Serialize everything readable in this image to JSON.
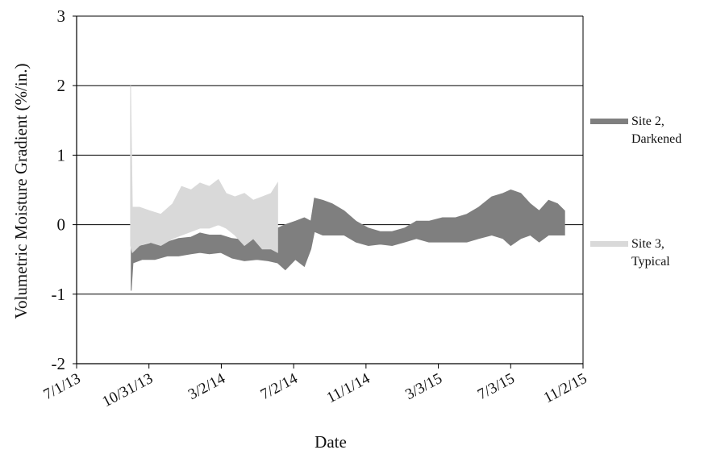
{
  "chart_data": {
    "type": "area",
    "xlabel": "Date",
    "ylabel": "Volumetric Moisture Gradient (%/in.)",
    "ylim": [
      -2,
      3
    ],
    "yticks": [
      "-2",
      "-1",
      "0",
      "1",
      "2",
      "3"
    ],
    "xlim": [
      "2013-07-01",
      "2015-11-02"
    ],
    "xticks": [
      "7/1/13",
      "10/31/13",
      "3/2/14",
      "7/2/14",
      "11/1/14",
      "3/3/15",
      "7/3/15",
      "11/2/15"
    ],
    "grid": "horizontal",
    "legend_position": "right",
    "series": [
      {
        "name": "Site 2, Darkened",
        "color": "#7f7f7f",
        "points": [
          {
            "date": "2013-10-01",
            "low": -0.95,
            "high": 0.0
          },
          {
            "date": "2013-10-04",
            "low": -0.55,
            "high": -0.25
          },
          {
            "date": "2013-10-20",
            "low": -0.5,
            "high": -0.3
          },
          {
            "date": "2013-11-10",
            "low": -0.5,
            "high": -0.25
          },
          {
            "date": "2013-12-01",
            "low": -0.45,
            "high": -0.25
          },
          {
            "date": "2013-12-20",
            "low": -0.45,
            "high": -0.2
          },
          {
            "date": "2014-01-10",
            "low": -0.42,
            "high": -0.18
          },
          {
            "date": "2014-01-25",
            "low": -0.4,
            "high": -0.12
          },
          {
            "date": "2014-02-10",
            "low": -0.42,
            "high": -0.15
          },
          {
            "date": "2014-03-01",
            "low": -0.4,
            "high": -0.15
          },
          {
            "date": "2014-03-20",
            "low": -0.48,
            "high": -0.2
          },
          {
            "date": "2014-04-10",
            "low": -0.52,
            "high": -0.22
          },
          {
            "date": "2014-05-01",
            "low": -0.5,
            "high": -0.15
          },
          {
            "date": "2014-05-20",
            "low": -0.52,
            "high": -0.1
          },
          {
            "date": "2014-06-05",
            "low": -0.55,
            "high": -0.05
          },
          {
            "date": "2014-06-18",
            "low": -0.65,
            "high": 0.0
          },
          {
            "date": "2014-07-05",
            "low": -0.5,
            "high": 0.05
          },
          {
            "date": "2014-07-20",
            "low": -0.6,
            "high": 0.1
          },
          {
            "date": "2014-07-31",
            "low": -0.35,
            "high": 0.05
          },
          {
            "date": "2014-08-06",
            "low": -0.1,
            "high": 0.38
          },
          {
            "date": "2014-08-20",
            "low": -0.15,
            "high": 0.35
          },
          {
            "date": "2014-09-05",
            "low": -0.15,
            "high": 0.3
          },
          {
            "date": "2014-09-25",
            "low": -0.15,
            "high": 0.2
          },
          {
            "date": "2014-10-15",
            "low": -0.25,
            "high": 0.05
          },
          {
            "date": "2014-11-05",
            "low": -0.3,
            "high": -0.05
          },
          {
            "date": "2014-11-25",
            "low": -0.28,
            "high": -0.1
          },
          {
            "date": "2014-12-15",
            "low": -0.3,
            "high": -0.1
          },
          {
            "date": "2015-01-05",
            "low": -0.25,
            "high": -0.05
          },
          {
            "date": "2015-01-25",
            "low": -0.2,
            "high": 0.05
          },
          {
            "date": "2015-02-15",
            "low": -0.25,
            "high": 0.05
          },
          {
            "date": "2015-03-10",
            "low": -0.25,
            "high": 0.1
          },
          {
            "date": "2015-04-01",
            "low": -0.25,
            "high": 0.1
          },
          {
            "date": "2015-04-20",
            "low": -0.25,
            "high": 0.15
          },
          {
            "date": "2015-05-10",
            "low": -0.2,
            "high": 0.25
          },
          {
            "date": "2015-06-01",
            "low": -0.15,
            "high": 0.4
          },
          {
            "date": "2015-06-20",
            "low": -0.2,
            "high": 0.45
          },
          {
            "date": "2015-07-03",
            "low": -0.3,
            "high": 0.5
          },
          {
            "date": "2015-07-20",
            "low": -0.2,
            "high": 0.45
          },
          {
            "date": "2015-08-05",
            "low": -0.15,
            "high": 0.3
          },
          {
            "date": "2015-08-20",
            "low": -0.25,
            "high": 0.2
          },
          {
            "date": "2015-09-05",
            "low": -0.15,
            "high": 0.35
          },
          {
            "date": "2015-09-20",
            "low": -0.15,
            "high": 0.3
          },
          {
            "date": "2015-10-02",
            "low": -0.15,
            "high": 0.2
          }
        ]
      },
      {
        "name": "Site 3, Typical",
        "color": "#d9d9d9",
        "points": [
          {
            "date": "2013-09-30",
            "low": -0.3,
            "high": 2.0
          },
          {
            "date": "2013-10-03",
            "low": -0.4,
            "high": 0.25
          },
          {
            "date": "2013-10-15",
            "low": -0.3,
            "high": 0.25
          },
          {
            "date": "2013-11-01",
            "low": -0.25,
            "high": 0.2
          },
          {
            "date": "2013-11-20",
            "low": -0.3,
            "high": 0.15
          },
          {
            "date": "2013-12-10",
            "low": -0.2,
            "high": 0.3
          },
          {
            "date": "2013-12-25",
            "low": -0.15,
            "high": 0.55
          },
          {
            "date": "2014-01-10",
            "low": -0.1,
            "high": 0.5
          },
          {
            "date": "2014-01-25",
            "low": -0.05,
            "high": 0.6
          },
          {
            "date": "2014-02-10",
            "low": -0.05,
            "high": 0.55
          },
          {
            "date": "2014-02-25",
            "low": 0.0,
            "high": 0.65
          },
          {
            "date": "2014-03-10",
            "low": -0.05,
            "high": 0.45
          },
          {
            "date": "2014-03-25",
            "low": -0.15,
            "high": 0.4
          },
          {
            "date": "2014-04-10",
            "low": -0.3,
            "high": 0.45
          },
          {
            "date": "2014-04-25",
            "low": -0.2,
            "high": 0.35
          },
          {
            "date": "2014-05-10",
            "low": -0.35,
            "high": 0.4
          },
          {
            "date": "2014-05-25",
            "low": -0.35,
            "high": 0.45
          },
          {
            "date": "2014-06-05",
            "low": -0.4,
            "high": 0.6
          }
        ]
      }
    ]
  }
}
